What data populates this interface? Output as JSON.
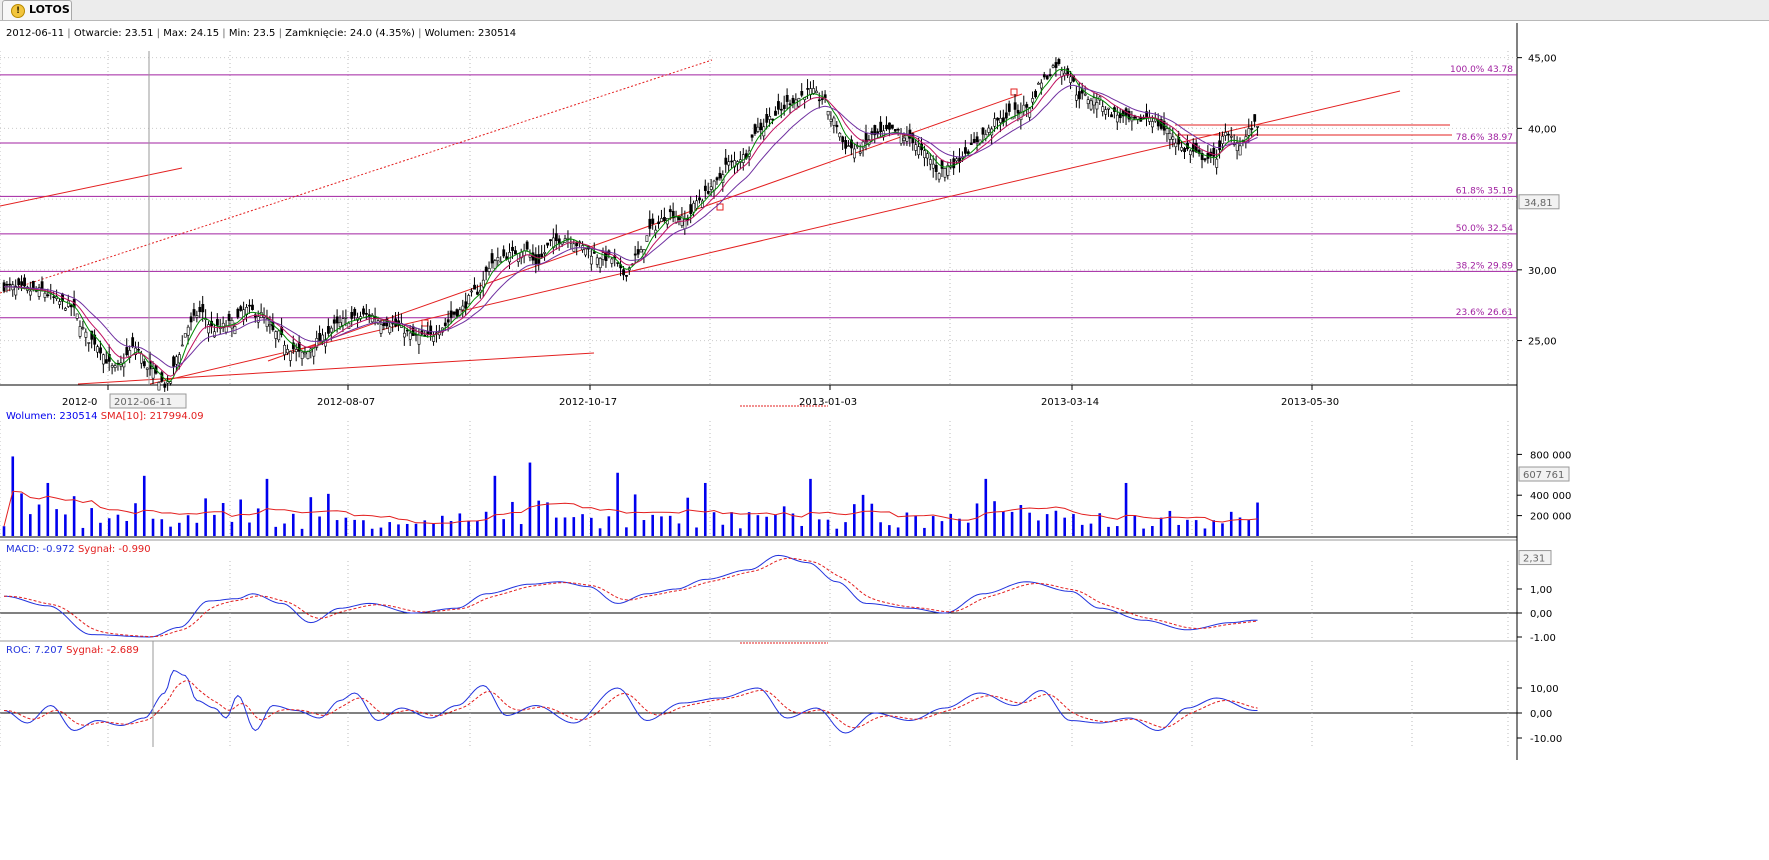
{
  "window": {
    "tab_label": "LOTOS"
  },
  "info_bar": {
    "date": "2012-06-11",
    "open_label": "Otwarcie:",
    "open": "23.51",
    "max_label": "Max:",
    "max": "24.15",
    "min_label": "Min:",
    "min": "23.5",
    "close_label": "Zamknięcie:",
    "close": "24.0 (4.35%)",
    "volume_label": "Wolumen:",
    "volume": "230514"
  },
  "colors": {
    "candle": "#000000",
    "fib": "#a020a0",
    "trend": "#e32020",
    "volume": "#0000ee",
    "sma": "#e32020",
    "macd": "#2233dd",
    "signal": "#e32020",
    "ema_fast": "#008800",
    "ema_mid": "#c01060",
    "ema_slow": "#7030a0"
  },
  "chart_data": [
    {
      "type": "candlestick",
      "name": "price",
      "x_ticks": [
        "2012-0",
        "2012-08-07",
        "2012-10-17",
        "2013-01-03",
        "2013-03-14",
        "2013-05-30"
      ],
      "cursor_date": "2012-06-11",
      "y_ticks": [
        "45,00",
        "40,00",
        "30,00",
        "25,00"
      ],
      "ylim": [
        22,
        46
      ],
      "last_price_label": "34,81",
      "fibonacci": [
        {
          "label": "100.0% 43.78",
          "value": 43.78
        },
        {
          "label": "78.6% 38.97",
          "value": 38.97
        },
        {
          "label": "61.8% 35.19",
          "value": 35.19
        },
        {
          "label": "50.0% 32.54",
          "value": 32.54
        },
        {
          "label": "38.2% 29.89",
          "value": 29.89
        },
        {
          "label": "23.6% 26.61",
          "value": 26.61
        }
      ],
      "close_keypoints": [
        [
          0,
          28.8
        ],
        [
          12,
          28.5
        ],
        [
          22,
          27.5
        ],
        [
          30,
          25.0
        ],
        [
          38,
          23.0
        ],
        [
          45,
          24.5
        ],
        [
          50,
          22.8
        ],
        [
          56,
          21.8
        ],
        [
          60,
          24.2
        ],
        [
          63,
          26.0
        ],
        [
          67,
          27.0
        ],
        [
          72,
          25.8
        ],
        [
          78,
          26.2
        ],
        [
          83,
          27.2
        ],
        [
          88,
          26.8
        ],
        [
          93,
          25.5
        ],
        [
          98,
          24.5
        ],
        [
          102,
          24.0
        ],
        [
          108,
          25.0
        ],
        [
          113,
          26.0
        ],
        [
          118,
          26.5
        ],
        [
          125,
          26.8
        ],
        [
          130,
          26.3
        ],
        [
          135,
          26.0
        ],
        [
          140,
          25.3
        ],
        [
          145,
          25.2
        ],
        [
          150,
          26.0
        ],
        [
          155,
          27.0
        ],
        [
          162,
          28.5
        ],
        [
          167,
          30.5
        ],
        [
          172,
          31.0
        ],
        [
          178,
          31.5
        ],
        [
          182,
          30.5
        ],
        [
          188,
          32.0
        ],
        [
          193,
          32.3
        ],
        [
          198,
          31.6
        ],
        [
          203,
          31.0
        ],
        [
          208,
          30.8
        ],
        [
          212,
          29.7
        ],
        [
          217,
          31.0
        ],
        [
          222,
          33.0
        ],
        [
          228,
          34.0
        ],
        [
          233,
          33.5
        ],
        [
          238,
          35.0
        ],
        [
          243,
          36.0
        ],
        [
          248,
          37.5
        ],
        [
          253,
          38.0
        ],
        [
          258,
          40.0
        ],
        [
          264,
          41.0
        ],
        [
          270,
          42.0
        ],
        [
          276,
          42.6
        ],
        [
          280,
          42.1
        ],
        [
          284,
          40.5
        ],
        [
          288,
          38.8
        ],
        [
          292,
          38.5
        ],
        [
          298,
          39.5
        ],
        [
          304,
          39.8
        ],
        [
          310,
          39.3
        ],
        [
          315,
          38.2
        ],
        [
          320,
          37.0
        ],
        [
          325,
          37.5
        ],
        [
          330,
          38.5
        ],
        [
          335,
          39.5
        ],
        [
          340,
          40.5
        ],
        [
          345,
          41.0
        ],
        [
          350,
          41.5
        ],
        [
          356,
          43.5
        ],
        [
          360,
          44.5
        ],
        [
          364,
          44.0
        ],
        [
          368,
          42.3
        ],
        [
          374,
          42.0
        ],
        [
          380,
          41.0
        ],
        [
          386,
          40.5
        ],
        [
          392,
          40.8
        ],
        [
          398,
          39.8
        ],
        [
          404,
          38.5
        ],
        [
          410,
          38.0
        ],
        [
          414,
          37.8
        ],
        [
          418,
          39.5
        ],
        [
          423,
          39.0
        ],
        [
          428,
          40.2
        ]
      ],
      "moving_averages": [
        {
          "kind": "EMA",
          "period": 5,
          "color": "#008800"
        },
        {
          "kind": "EMA",
          "period": 10,
          "color": "#c01060"
        },
        {
          "kind": "EMA",
          "period": 20,
          "color": "#7030a0"
        }
      ]
    },
    {
      "type": "bar",
      "name": "Wolumen",
      "label": "Wolumen: 230514",
      "sma_label": "SMA[10]: 217994.09",
      "y_ticks": [
        "800 000",
        "400 000",
        "200 000"
      ],
      "ylim": [
        0,
        1000000
      ],
      "last_value_label": "607 761",
      "spikes": [
        [
          2,
          840
        ],
        [
          3,
          780
        ],
        [
          8,
          540
        ],
        [
          15,
          520
        ],
        [
          20,
          540
        ],
        [
          28,
          560
        ],
        [
          34,
          590
        ],
        [
          48,
          590
        ],
        [
          64,
          900
        ],
        [
          90,
          560
        ],
        [
          106,
          560
        ],
        [
          128,
          500
        ],
        [
          168,
          590
        ],
        [
          180,
          720
        ],
        [
          190,
          860
        ],
        [
          210,
          620
        ],
        [
          232,
          660
        ],
        [
          240,
          520
        ],
        [
          276,
          560
        ],
        [
          286,
          800
        ],
        [
          304,
          580
        ],
        [
          320,
          520
        ],
        [
          336,
          560
        ],
        [
          356,
          720
        ],
        [
          370,
          680
        ],
        [
          384,
          520
        ],
        [
          395,
          630
        ],
        [
          400,
          640
        ],
        [
          407,
          610
        ]
      ]
    },
    {
      "type": "line",
      "name": "MACD",
      "macd_label": "MACD: -0.972",
      "signal_label": "Sygnał: -0.990",
      "y_ticks": [
        "1,00",
        "0,00",
        "-1.00"
      ],
      "ylim": [
        -1.1,
        2.5
      ],
      "last_value_label": "2,31",
      "macd_keypoints": [
        [
          0,
          0.7
        ],
        [
          15,
          0.3
        ],
        [
          30,
          -0.9
        ],
        [
          50,
          -1.0
        ],
        [
          60,
          -0.6
        ],
        [
          70,
          0.5
        ],
        [
          80,
          0.6
        ],
        [
          85,
          0.8
        ],
        [
          95,
          0.4
        ],
        [
          105,
          -0.4
        ],
        [
          115,
          0.2
        ],
        [
          125,
          0.4
        ],
        [
          140,
          0.0
        ],
        [
          155,
          0.2
        ],
        [
          165,
          0.8
        ],
        [
          180,
          1.2
        ],
        [
          190,
          1.3
        ],
        [
          200,
          1.1
        ],
        [
          210,
          0.4
        ],
        [
          220,
          0.8
        ],
        [
          230,
          1.0
        ],
        [
          240,
          1.4
        ],
        [
          255,
          1.8
        ],
        [
          265,
          2.4
        ],
        [
          275,
          2.1
        ],
        [
          285,
          1.3
        ],
        [
          295,
          0.4
        ],
        [
          310,
          0.2
        ],
        [
          322,
          0.0
        ],
        [
          335,
          0.8
        ],
        [
          350,
          1.3
        ],
        [
          365,
          0.9
        ],
        [
          375,
          0.2
        ],
        [
          390,
          -0.3
        ],
        [
          405,
          -0.7
        ],
        [
          420,
          -0.4
        ],
        [
          428,
          -0.3
        ]
      ]
    },
    {
      "type": "line",
      "name": "ROC",
      "roc_label": "ROC: 7.207",
      "signal_label": "Sygnał: -2.689",
      "y_ticks": [
        "10,00",
        "0,00",
        "-10.00"
      ],
      "ylim": [
        -12,
        20
      ],
      "roc_keypoints": [
        [
          0,
          1
        ],
        [
          8,
          -4
        ],
        [
          16,
          3
        ],
        [
          24,
          -7
        ],
        [
          32,
          -3
        ],
        [
          40,
          -5
        ],
        [
          48,
          -2
        ],
        [
          55,
          8
        ],
        [
          58,
          17
        ],
        [
          62,
          15
        ],
        [
          66,
          5
        ],
        [
          72,
          2
        ],
        [
          76,
          -2
        ],
        [
          80,
          7
        ],
        [
          86,
          -7
        ],
        [
          92,
          3
        ],
        [
          100,
          1
        ],
        [
          108,
          -2
        ],
        [
          115,
          5
        ],
        [
          120,
          8
        ],
        [
          128,
          -3
        ],
        [
          136,
          2
        ],
        [
          146,
          -2
        ],
        [
          155,
          3
        ],
        [
          164,
          11
        ],
        [
          172,
          -1
        ],
        [
          182,
          3
        ],
        [
          195,
          -4
        ],
        [
          210,
          10
        ],
        [
          220,
          -3
        ],
        [
          232,
          4
        ],
        [
          245,
          6
        ],
        [
          258,
          10
        ],
        [
          268,
          -2
        ],
        [
          278,
          2
        ],
        [
          288,
          -8
        ],
        [
          298,
          0
        ],
        [
          310,
          -3
        ],
        [
          322,
          2
        ],
        [
          334,
          8
        ],
        [
          346,
          3
        ],
        [
          355,
          9
        ],
        [
          365,
          -3
        ],
        [
          375,
          -4
        ],
        [
          385,
          -2
        ],
        [
          395,
          -7
        ],
        [
          405,
          2
        ],
        [
          415,
          6
        ],
        [
          428,
          1
        ]
      ]
    }
  ]
}
